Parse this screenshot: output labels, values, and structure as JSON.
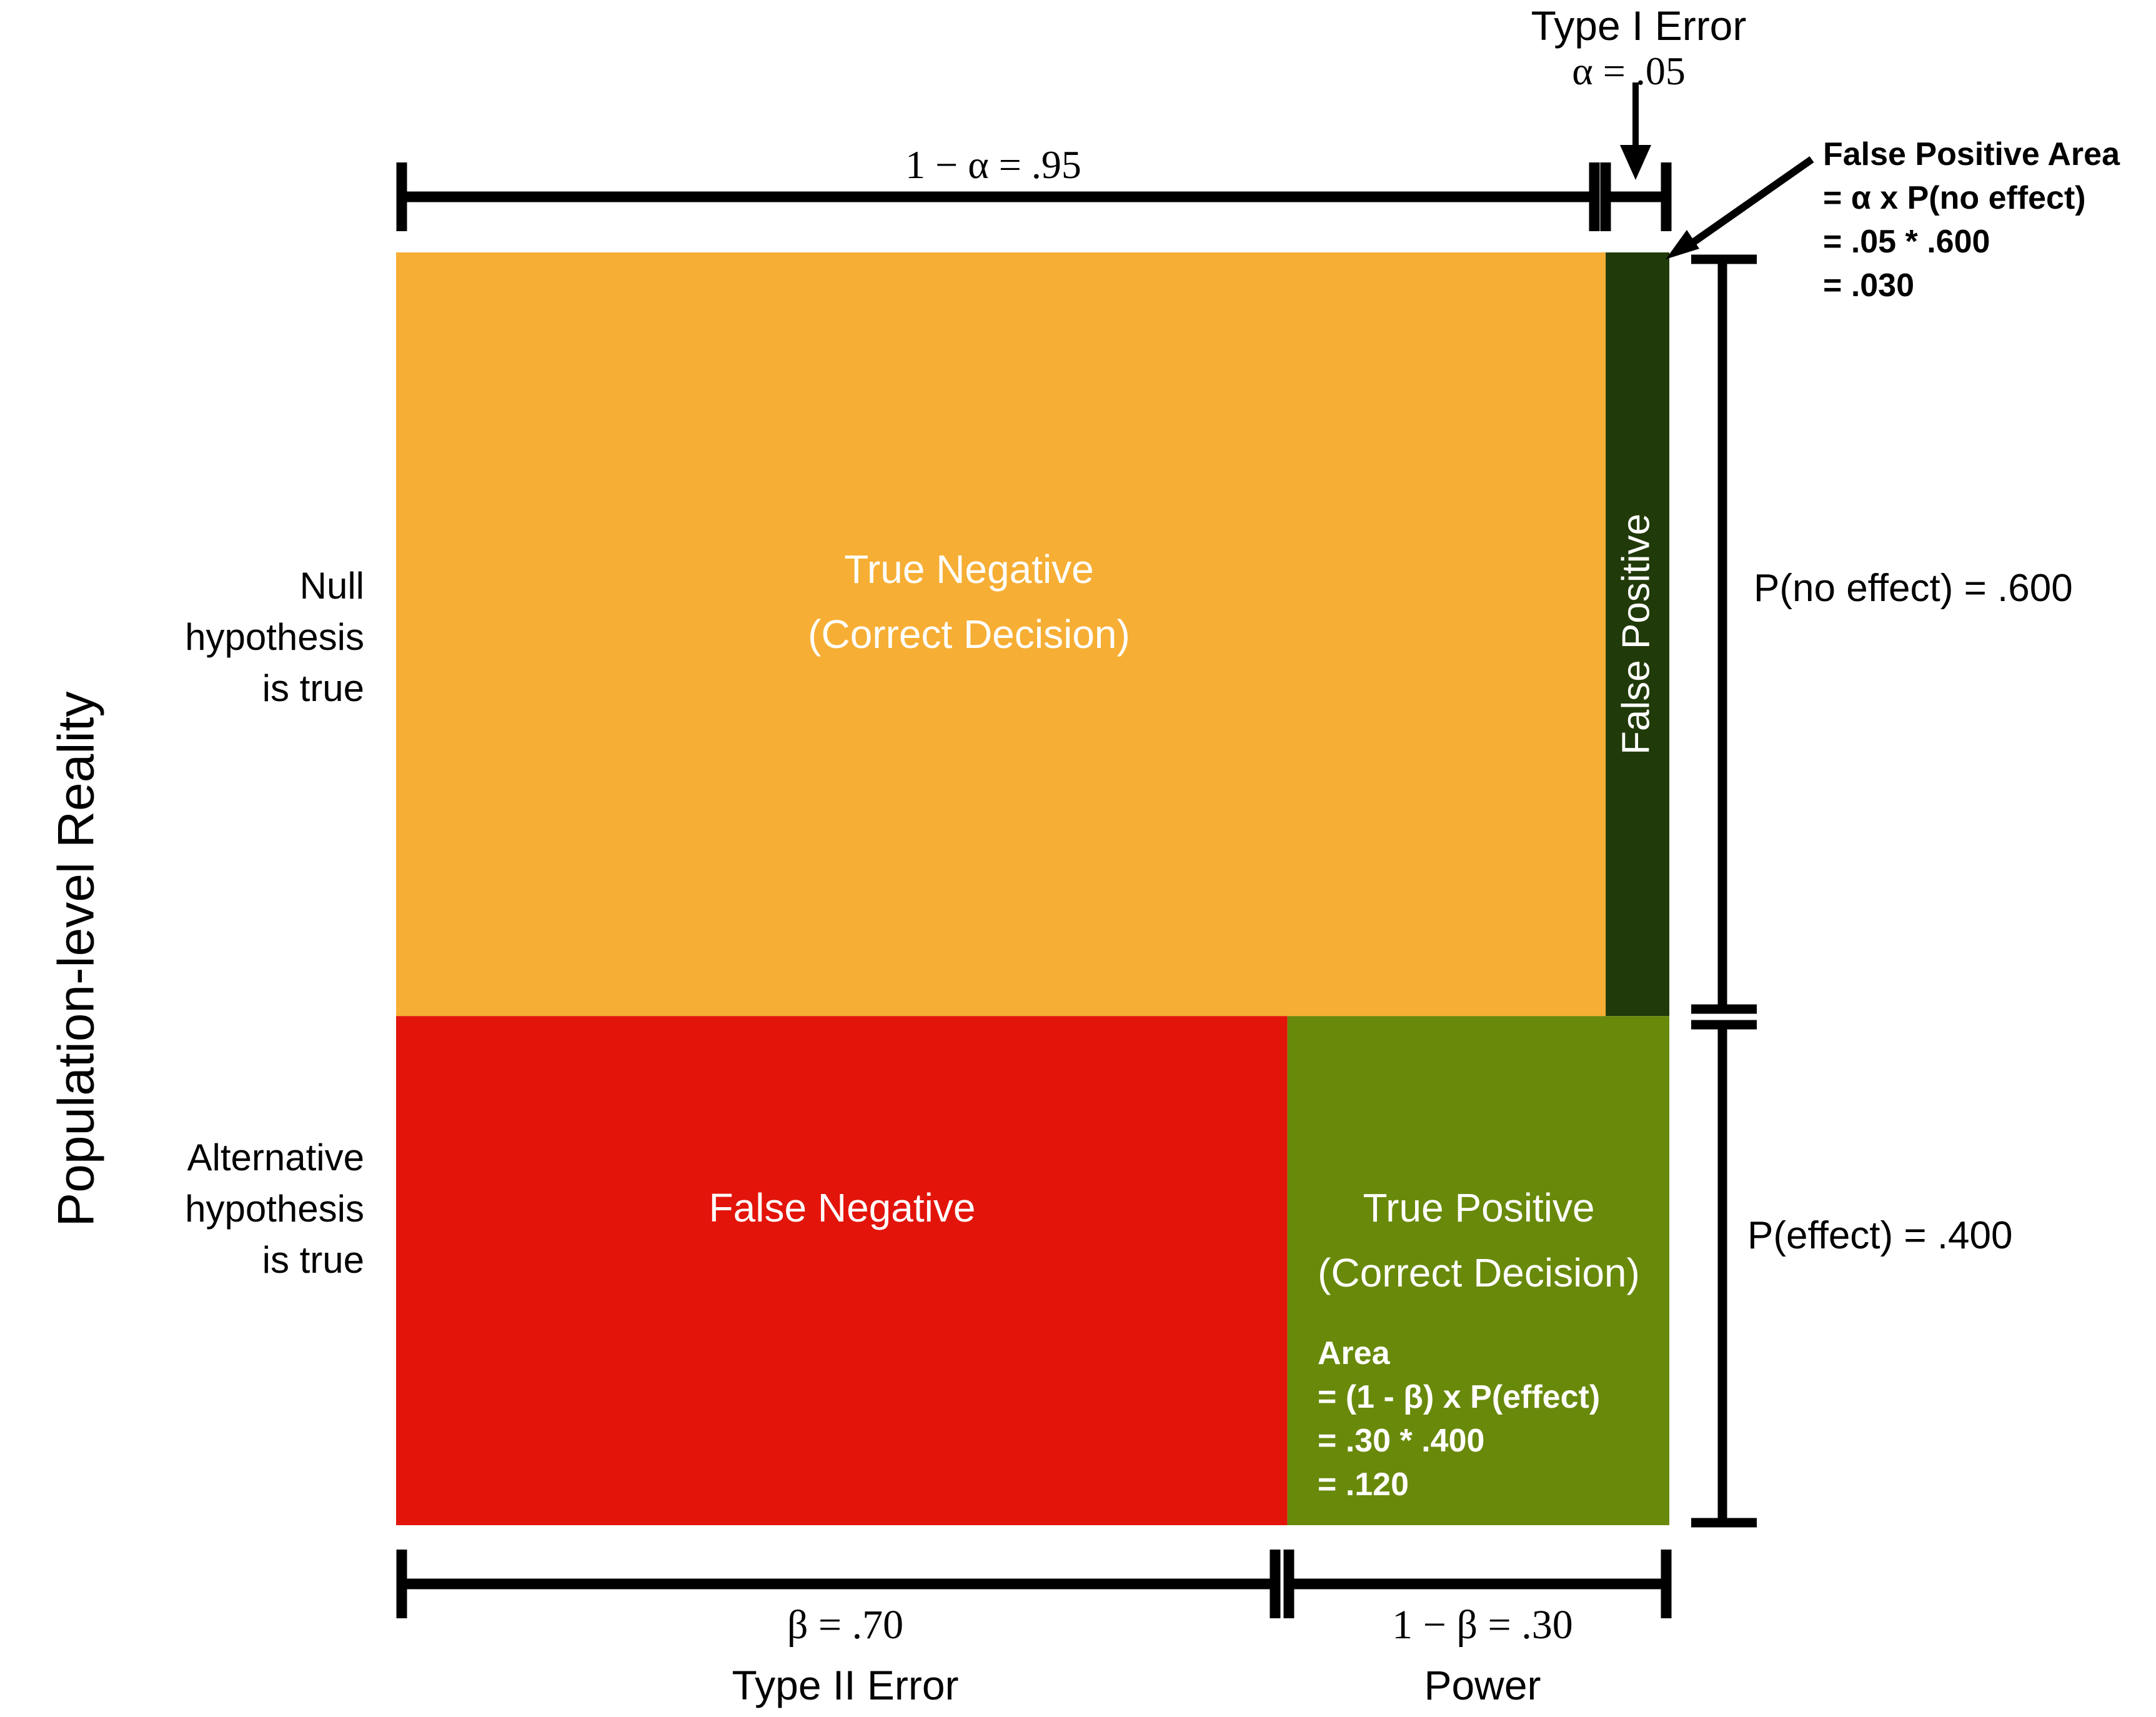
{
  "row_labels": {
    "axis_title": "Population-level Reality",
    "null_row": [
      "Null",
      "hypothesis",
      "is true"
    ],
    "alt_row": [
      "Alternative",
      "hypothesis",
      "is true"
    ]
  },
  "cells": {
    "true_negative": {
      "line1": "True Negative",
      "line2": "(Correct Decision)",
      "color": "#F6AE34"
    },
    "false_positive": {
      "label": "False Positive",
      "color": "#213A09"
    },
    "false_negative": {
      "label": "False Negative",
      "color": "#E3140A"
    },
    "true_positive": {
      "line1": "True Positive",
      "line2": "(Correct Decision)",
      "color": "#69890B",
      "area": [
        "Area",
        "= (1 - β) x P(effect)",
        "= .30 *  .400",
        "= .120"
      ]
    }
  },
  "top_dimensions": {
    "one_minus_alpha": "1 − α = .95",
    "type1_title": "Type I Error",
    "alpha": "α = .05"
  },
  "fp_annotation": [
    "False Positive Area",
    "= α x P(no effect)",
    "= .05 *  .600",
    "= .030"
  ],
  "right_dimensions": {
    "p_no_effect": "P(no effect) = .600",
    "p_effect": "P(effect) = .400"
  },
  "bottom_dimensions": {
    "beta": "β = .70",
    "type2_title": "Type II Error",
    "one_minus_beta": "1 − β = .30",
    "power_title": "Power"
  },
  "chart_data": {
    "type": "mosaic",
    "rows": [
      {
        "name": "Null hypothesis is true",
        "probability": 0.6
      },
      {
        "name": "Alternative hypothesis is true",
        "probability": 0.4
      }
    ],
    "row_splits": {
      "Null hypothesis is true": {
        "True Negative": 0.95,
        "False Positive": 0.05
      },
      "Alternative hypothesis is true": {
        "False Negative": 0.7,
        "True Positive": 0.3
      }
    },
    "areas": {
      "False Positive": 0.03,
      "True Positive": 0.12
    }
  }
}
